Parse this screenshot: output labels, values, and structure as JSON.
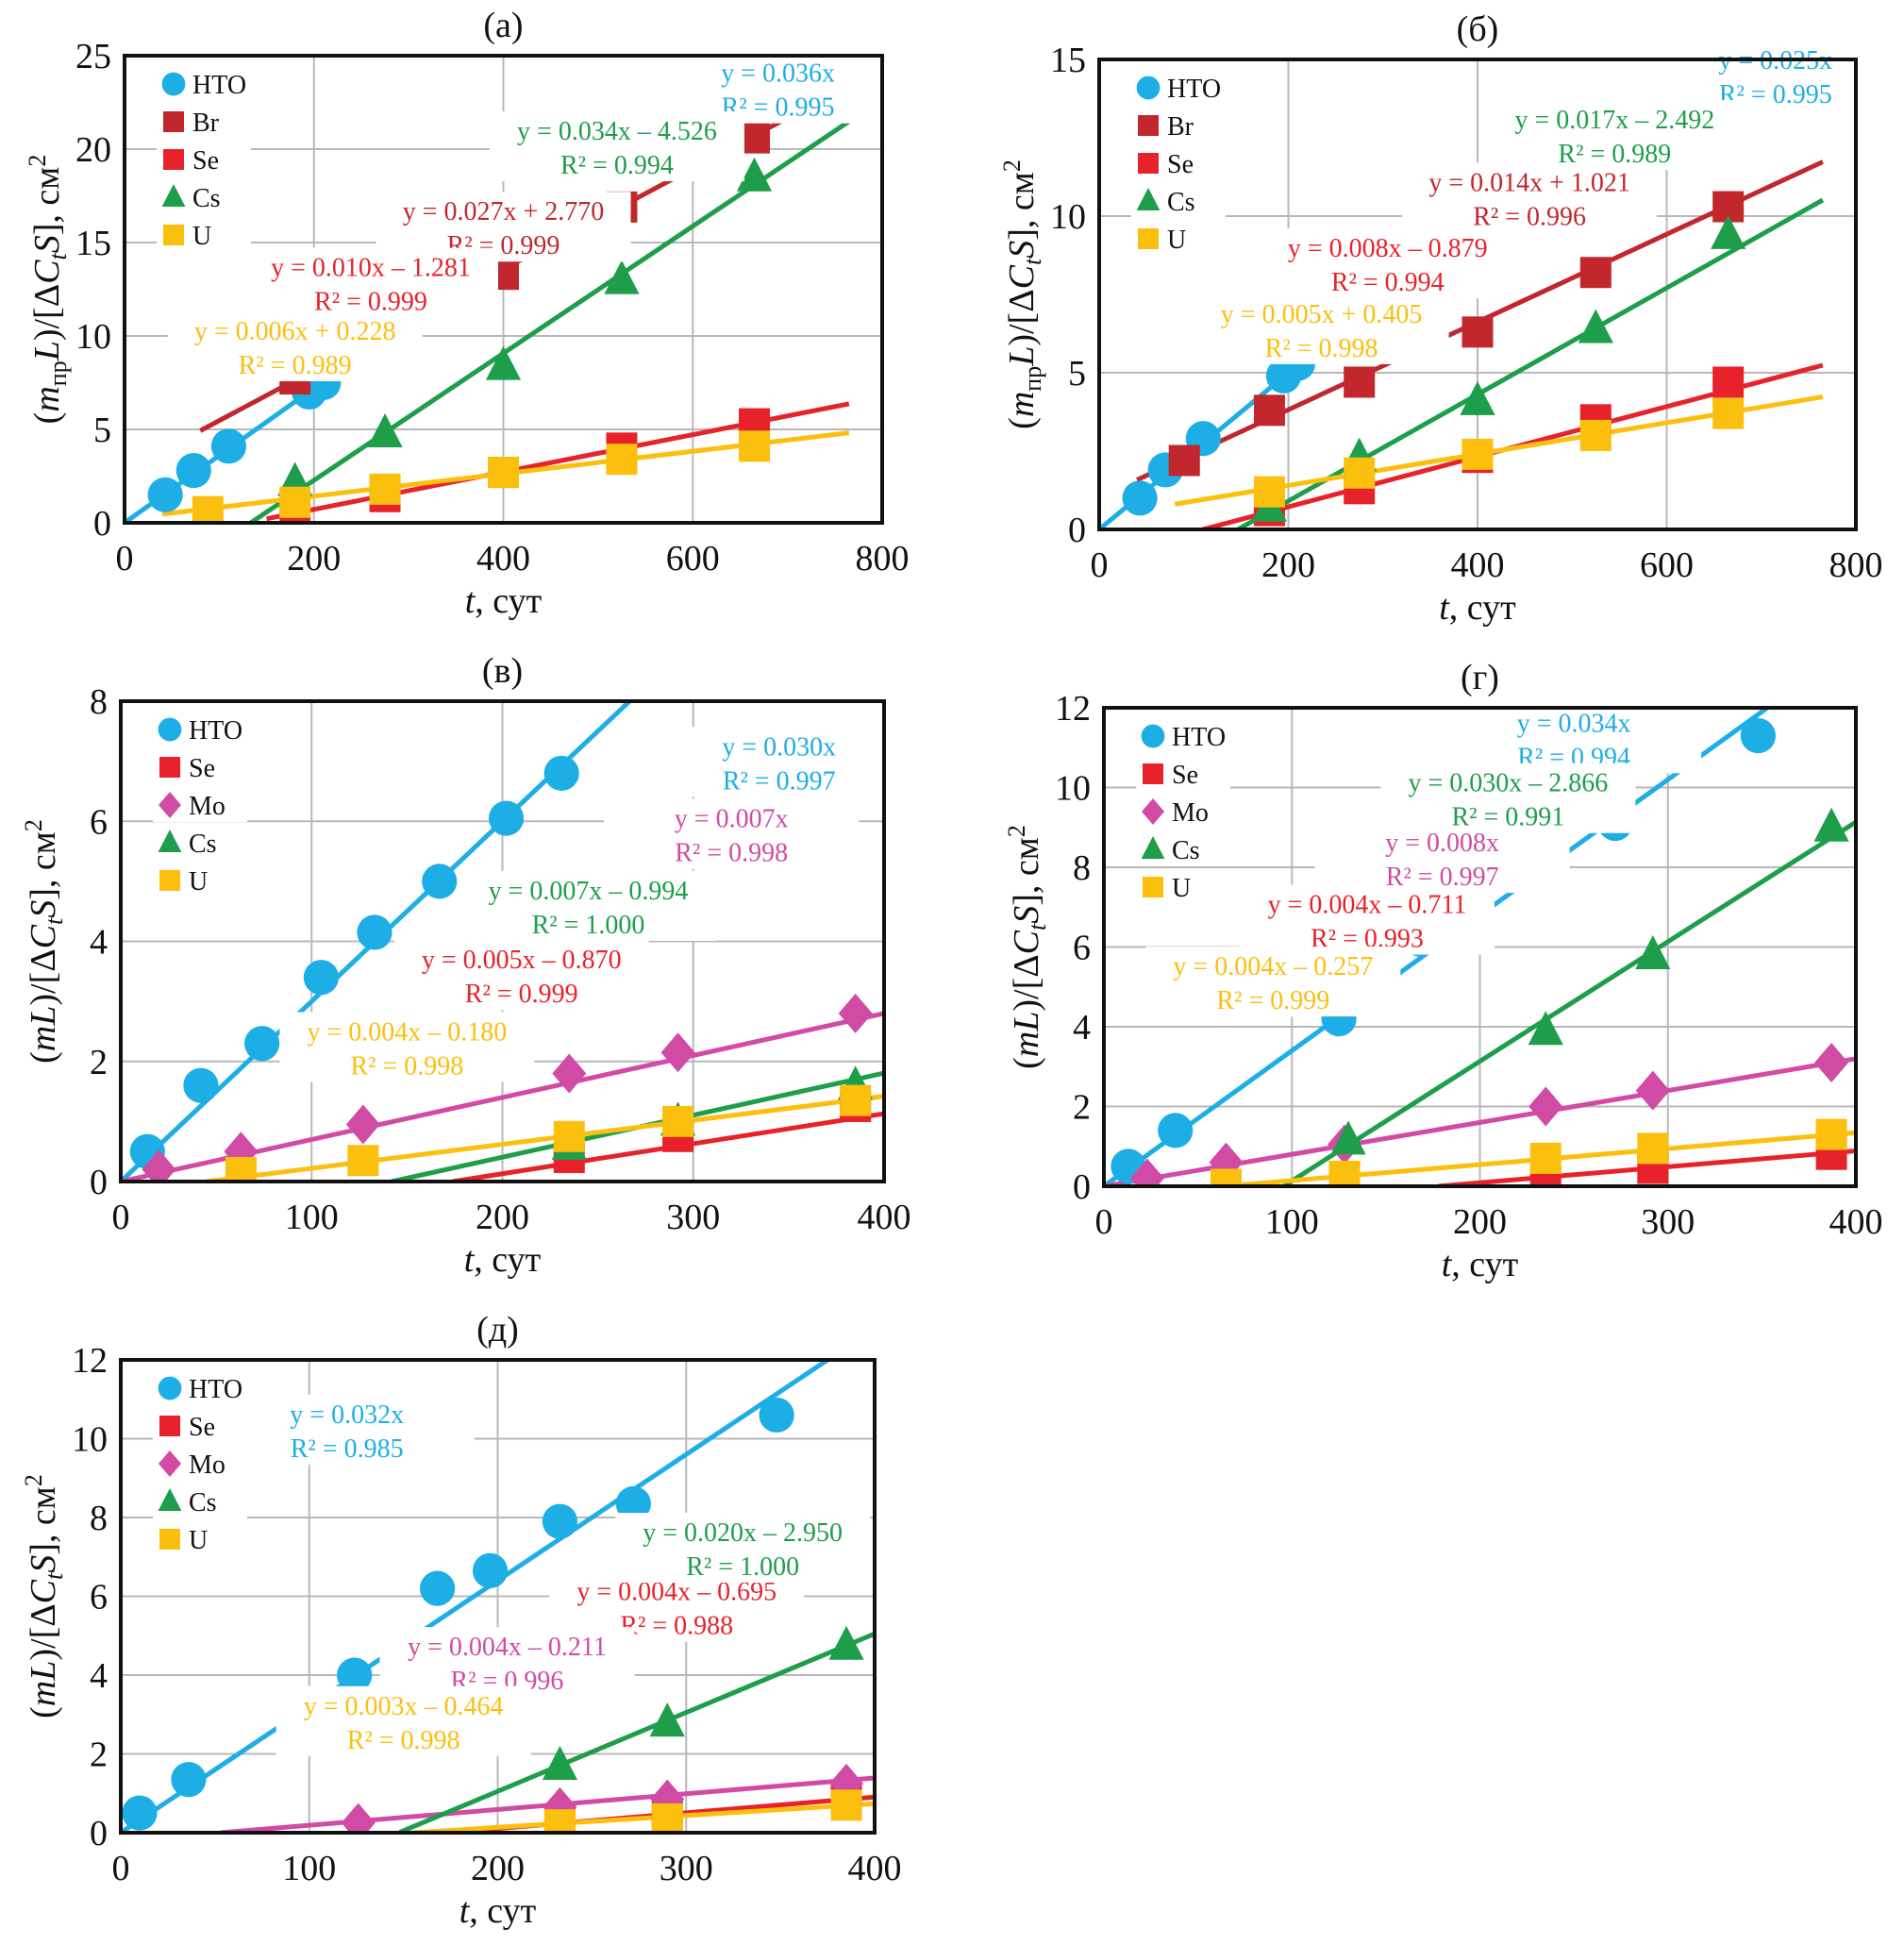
{
  "figure": {
    "colors": {
      "HTO": "#1EAEE6",
      "Br": "#C1272D",
      "Se": "#E8222B",
      "Mo": "#D14BA4",
      "Cs": "#1E9E4A",
      "U": "#FBBF0E",
      "grid": "#b8b8b8",
      "axis": "#111111"
    },
    "x_label_var": "t",
    "x_label_unit": ", сут"
  },
  "chart_data": [
    {
      "id": "a",
      "type": "scatter",
      "title": "(a)",
      "xlabel": "t, сут",
      "ylabel": "(m_пр L)/[ΔC_t S], см²",
      "ylabel_numerator": "m",
      "ylabel_sub": "пр",
      "xlim": [
        0,
        800
      ],
      "ylim": [
        0,
        25
      ],
      "xticks": [
        0,
        200,
        400,
        600,
        800
      ],
      "yticks": [
        0,
        5,
        10,
        15,
        20,
        25
      ],
      "grid": true,
      "legend_position": "top-left",
      "legend": [
        "HTO",
        "Br",
        "Se",
        "Cs",
        "U"
      ],
      "series": [
        {
          "name": "HTO",
          "marker": "circle",
          "x": [
            43,
            73,
            110,
            195,
            210
          ],
          "y": [
            1.5,
            2.8,
            4.1,
            7.0,
            7.5
          ],
          "fit": {
            "slope": 0.036,
            "intercept": 0,
            "x_range": [
              0,
              265
            ]
          },
          "equation": "y = 0.036x",
          "r2": "R² = 0.995"
        },
        {
          "name": "Br",
          "marker": "square",
          "x": [
            180,
            275,
            400,
            525,
            665
          ],
          "y": [
            7.7,
            10.2,
            13.3,
            16.9,
            20.6
          ],
          "fit": {
            "slope": 0.027,
            "intercept": 2.77,
            "x_range": [
              80,
              765
            ]
          },
          "equation": "y = 0.027x + 2.770",
          "r2": "R² = 0.999"
        },
        {
          "name": "Se",
          "marker": "square",
          "x": [
            180,
            275,
            400,
            525,
            665
          ],
          "y": [
            0.2,
            1.4,
            2.7,
            4.0,
            5.3
          ],
          "fit": {
            "slope": 0.01,
            "intercept": -1.281,
            "x_range": [
              150,
              765
            ]
          },
          "equation": "y = 0.010x – 1.281",
          "r2": "R² = 0.999"
        },
        {
          "name": "Cs",
          "marker": "triangle",
          "x": [
            180,
            275,
            400,
            525,
            665
          ],
          "y": [
            2.2,
            4.8,
            8.4,
            13.0,
            18.5
          ],
          "fit": {
            "slope": 0.034,
            "intercept": -4.526,
            "x_range": [
              133,
              765
            ]
          },
          "equation": "y = 0.034x – 4.526",
          "r2": "R² = 0.994"
        },
        {
          "name": "U",
          "marker": "square",
          "x": [
            88,
            180,
            275,
            400,
            525,
            665
          ],
          "y": [
            0.6,
            1.1,
            1.8,
            2.7,
            3.4,
            4.1
          ],
          "fit": {
            "slope": 0.006,
            "intercept": 0.228,
            "x_range": [
              40,
              765
            ]
          },
          "equation": "y = 0.006x + 0.228",
          "r2": "R² = 0.989"
        }
      ]
    },
    {
      "id": "b",
      "type": "scatter",
      "title": "(б)",
      "xlabel": "t, сут",
      "ylabel": "(m_пр L)/[ΔC_t S], см²",
      "ylabel_numerator": "m",
      "ylabel_sub": "пр",
      "xlim": [
        0,
        800
      ],
      "ylim": [
        0,
        15
      ],
      "xticks": [
        0,
        200,
        400,
        600,
        800
      ],
      "yticks": [
        0,
        5,
        10,
        15
      ],
      "grid": true,
      "legend_position": "top-left",
      "legend": [
        "HTO",
        "Br",
        "Se",
        "Cs",
        "U"
      ],
      "series": [
        {
          "name": "HTO",
          "marker": "circle",
          "x": [
            43,
            70,
            110,
            195,
            210
          ],
          "y": [
            1.0,
            1.9,
            2.9,
            4.9,
            5.3
          ],
          "fit": {
            "slope": 0.025,
            "intercept": 0,
            "x_range": [
              0,
              262
            ]
          },
          "equation": "y = 0.025x",
          "r2": "R² = 0.995"
        },
        {
          "name": "Br",
          "marker": "square",
          "x": [
            90,
            180,
            275,
            400,
            525,
            665
          ],
          "y": [
            2.2,
            3.8,
            4.7,
            6.3,
            8.2,
            10.3
          ],
          "fit": {
            "slope": 0.014,
            "intercept": 1.021,
            "x_range": [
              40,
              765
            ]
          },
          "equation": "y = 0.014x + 1.021",
          "r2": "R² = 0.996"
        },
        {
          "name": "Se",
          "marker": "square",
          "x": [
            180,
            275,
            400,
            525,
            665
          ],
          "y": [
            0.6,
            1.3,
            2.3,
            3.5,
            4.7
          ],
          "fit": {
            "slope": 0.008,
            "intercept": -0.879,
            "x_range": [
              105,
              765
            ]
          },
          "equation": "y = 0.008x – 0.879",
          "r2": "R² = 0.994"
        },
        {
          "name": "Cs",
          "marker": "triangle",
          "x": [
            180,
            275,
            400,
            525,
            665
          ],
          "y": [
            0.7,
            2.3,
            4.1,
            6.4,
            9.4
          ],
          "fit": {
            "slope": 0.017,
            "intercept": -2.492,
            "x_range": [
              147,
              765
            ]
          },
          "equation": "y = 0.017x – 2.492",
          "r2": "R² = 0.989"
        },
        {
          "name": "U",
          "marker": "square",
          "x": [
            180,
            275,
            400,
            525,
            665
          ],
          "y": [
            1.2,
            1.8,
            2.4,
            3.0,
            3.7
          ],
          "fit": {
            "slope": 0.005,
            "intercept": 0.405,
            "x_range": [
              80,
              765
            ]
          },
          "equation": "y = 0.005x + 0.405",
          "r2": "R² = 0.998"
        }
      ]
    },
    {
      "id": "v",
      "type": "scatter",
      "title": "(в)",
      "xlabel": "t, сут",
      "ylabel": "(mL)/[ΔC_t S], см²",
      "ylabel_numerator": "mL",
      "ylabel_sub": "",
      "xlim": [
        0,
        400
      ],
      "ylim": [
        0,
        8
      ],
      "xticks": [
        0,
        100,
        200,
        300,
        400
      ],
      "yticks": [
        0,
        2,
        4,
        6,
        8
      ],
      "grid": true,
      "legend_position": "top-left",
      "legend": [
        "HTO",
        "Se",
        "Mo",
        "Cs",
        "U"
      ],
      "series": [
        {
          "name": "HTO",
          "marker": "circle",
          "x": [
            14,
            42,
            74,
            105,
            133,
            167,
            202,
            231
          ],
          "y": [
            0.5,
            1.6,
            2.3,
            3.4,
            4.15,
            5.0,
            6.05,
            6.8
          ],
          "fit": {
            "slope": 0.03,
            "intercept": 0,
            "x_range": [
              0,
              267
            ]
          },
          "equation": "y = 0.030x",
          "r2": "R² = 0.997"
        },
        {
          "name": "Se",
          "marker": "square",
          "x": [
            235,
            292,
            385
          ],
          "y": [
            0.4,
            0.75,
            1.25
          ],
          "fit": {
            "slope": 0.005,
            "intercept": -0.87,
            "x_range": [
              174,
              400
            ]
          },
          "equation": "y = 0.005x – 0.870",
          "r2": "R² = 0.999"
        },
        {
          "name": "Mo",
          "marker": "diamond",
          "x": [
            20,
            63,
            127,
            235,
            292,
            385
          ],
          "y": [
            0.2,
            0.5,
            0.95,
            1.8,
            2.15,
            2.8
          ],
          "fit": {
            "slope": 0.007,
            "intercept": 0,
            "x_range": [
              0,
              400
            ]
          },
          "equation": "y = 0.007x",
          "r2": "R² = 0.998"
        },
        {
          "name": "Cs",
          "marker": "triangle",
          "x": [
            235,
            292,
            385
          ],
          "y": [
            0.6,
            1.0,
            1.6
          ],
          "fit": {
            "slope": 0.007,
            "intercept": -0.994,
            "x_range": [
              142,
              400
            ]
          },
          "equation": "y = 0.007x – 0.994",
          "r2": "R² = 1.000"
        },
        {
          "name": "U",
          "marker": "square",
          "x": [
            63,
            127,
            235,
            292,
            385
          ],
          "y": [
            0.15,
            0.35,
            0.75,
            1.0,
            1.35
          ],
          "fit": {
            "slope": 0.004,
            "intercept": -0.18,
            "x_range": [
              45,
              400
            ]
          },
          "equation": "y = 0.004x – 0.180",
          "r2": "R² = 0.998"
        }
      ]
    },
    {
      "id": "g",
      "type": "scatter",
      "title": "(г)",
      "xlabel": "t, сут",
      "ylabel": "(mL)/[ΔC_t S], см²",
      "ylabel_numerator": "mL",
      "ylabel_sub": "",
      "xlim": [
        0,
        400
      ],
      "ylim": [
        0,
        12
      ],
      "xticks": [
        0,
        100,
        200,
        300,
        400
      ],
      "yticks": [
        0,
        2,
        4,
        6,
        8,
        10,
        12
      ],
      "grid": true,
      "legend_position": "top-left",
      "legend": [
        "HTO",
        "Se",
        "Mo",
        "Cs",
        "U"
      ],
      "series": [
        {
          "name": "HTO",
          "marker": "circle",
          "x": [
            13,
            38,
            125,
            168,
            197,
            235,
            272,
            348
          ],
          "y": [
            0.5,
            1.4,
            4.2,
            6.2,
            6.95,
            8.0,
            9.1,
            11.3
          ],
          "fit": {
            "slope": 0.034,
            "intercept": 0,
            "x_range": [
              0,
              356
            ]
          },
          "equation": "y = 0.034x",
          "r2": "R² = 0.994"
        },
        {
          "name": "Se",
          "marker": "square",
          "x": [
            235,
            292,
            387
          ],
          "y": [
            0.1,
            0.45,
            0.8
          ],
          "fit": {
            "slope": 0.004,
            "intercept": -0.711,
            "x_range": [
              178,
              400
            ]
          },
          "equation": "y = 0.004x – 0.711",
          "r2": "R² = 0.993"
        },
        {
          "name": "Mo",
          "marker": "diamond",
          "x": [
            23,
            65,
            128,
            235,
            292,
            387
          ],
          "y": [
            0.2,
            0.6,
            1.05,
            2.0,
            2.4,
            3.1
          ],
          "fit": {
            "slope": 0.008,
            "intercept": 0,
            "x_range": [
              0,
              400
            ]
          },
          "equation": "y = 0.008x",
          "r2": "R² = 0.997"
        },
        {
          "name": "Cs",
          "marker": "triangle",
          "x": [
            130,
            235,
            292,
            387
          ],
          "y": [
            1.15,
            3.9,
            5.8,
            9.0
          ],
          "fit": {
            "slope": 0.03,
            "intercept": -2.866,
            "x_range": [
              96,
              400
            ]
          },
          "equation": "y = 0.030x – 2.866",
          "r2": "R² = 0.991"
        },
        {
          "name": "U",
          "marker": "square",
          "x": [
            65,
            128,
            235,
            292,
            387
          ],
          "y": [
            0.05,
            0.25,
            0.7,
            0.95,
            1.3
          ],
          "fit": {
            "slope": 0.004,
            "intercept": -0.257,
            "x_range": [
              64,
              400
            ]
          },
          "equation": "y = 0.004x – 0.257",
          "r2": "R² = 0.999"
        }
      ]
    },
    {
      "id": "d",
      "type": "scatter",
      "title": "(д)",
      "xlabel": "t, сут",
      "ylabel": "(mL)/[ΔC_t S], см²",
      "ylabel_numerator": "mL",
      "ylabel_sub": "",
      "xlim": [
        0,
        400
      ],
      "ylim": [
        0,
        12
      ],
      "xticks": [
        0,
        100,
        200,
        300,
        400
      ],
      "yticks": [
        0,
        2,
        4,
        6,
        8,
        10,
        12
      ],
      "grid": true,
      "legend_position": "top-left",
      "legend": [
        "HTO",
        "Se",
        "Mo",
        "Cs",
        "U"
      ],
      "series": [
        {
          "name": "HTO",
          "marker": "circle",
          "x": [
            10,
            36,
            124,
            168,
            196,
            233,
            272,
            348
          ],
          "y": [
            0.5,
            1.35,
            4.0,
            6.2,
            6.65,
            7.9,
            8.35,
            10.6
          ],
          "fit": {
            "slope": 0.032,
            "intercept": 0,
            "x_range": [
              0,
              375
            ]
          },
          "equation": "y = 0.032x",
          "r2": "R² = 0.985"
        },
        {
          "name": "Se",
          "marker": "square",
          "x": [
            233,
            290,
            385
          ],
          "y": [
            0.25,
            0.45,
            0.85
          ],
          "fit": {
            "slope": 0.004,
            "intercept": -0.695,
            "x_range": [
              174,
              400
            ]
          },
          "equation": "y = 0.004x – 0.695",
          "r2": "R² = 0.988"
        },
        {
          "name": "Mo",
          "marker": "diamond",
          "x": [
            126,
            233,
            290,
            385
          ],
          "y": [
            0.25,
            0.65,
            0.85,
            1.25
          ],
          "fit": {
            "slope": 0.004,
            "intercept": -0.211,
            "x_range": [
              53,
              400
            ]
          },
          "equation": "y = 0.004x – 0.211",
          "r2": "R² = 0.996"
        },
        {
          "name": "Cs",
          "marker": "triangle",
          "x": [
            233,
            290,
            385
          ],
          "y": [
            1.7,
            2.8,
            4.75
          ],
          "fit": {
            "slope": 0.02,
            "intercept": -2.95,
            "x_range": [
              148,
              400
            ]
          },
          "equation": "y = 0.020x – 2.950",
          "r2": "R² = 1.000"
        },
        {
          "name": "U",
          "marker": "square",
          "x": [
            233,
            290,
            385
          ],
          "y": [
            0.2,
            0.35,
            0.7
          ],
          "fit": {
            "slope": 0.003,
            "intercept": -0.464,
            "x_range": [
              155,
              400
            ]
          },
          "equation": "y = 0.003x – 0.464",
          "r2": "R² = 0.998"
        }
      ]
    }
  ]
}
